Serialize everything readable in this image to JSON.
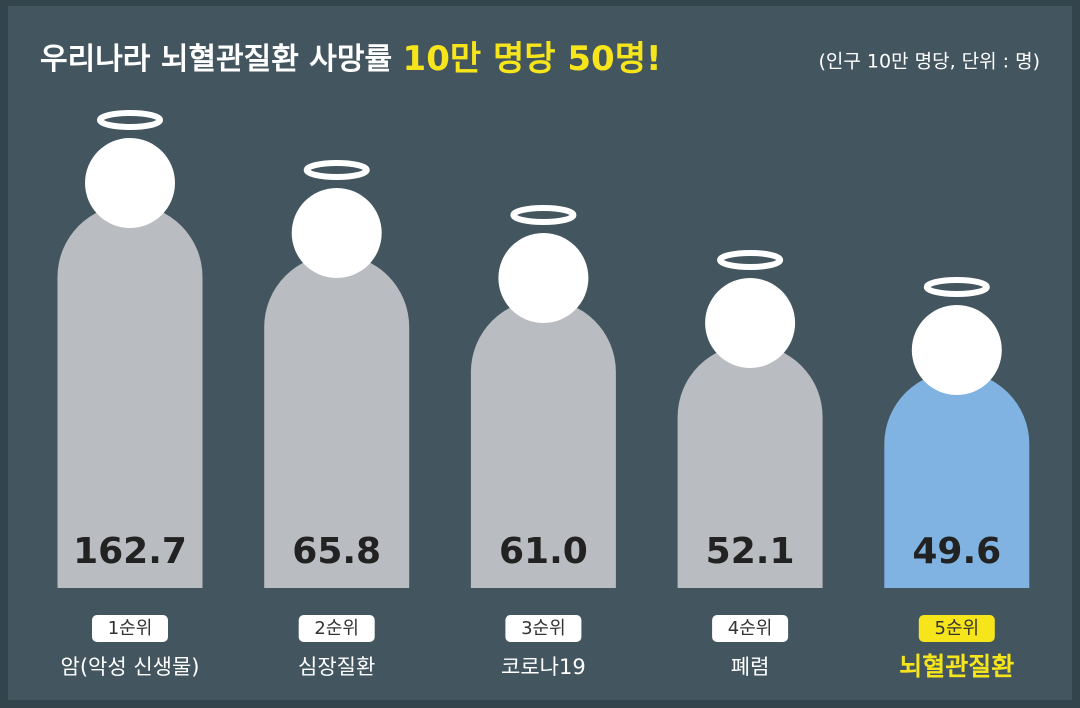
{
  "chart_data": {
    "type": "bar",
    "title": "우리나라 뇌혈관질환 사망률",
    "title_highlight": "10만 명당 50명!",
    "subtitle": "(인구 10만 명당, 단위 : 명)",
    "ranks": [
      "1순위",
      "2순위",
      "3순위",
      "4순위",
      "5순위"
    ],
    "categories": [
      "암(악성 신생물)",
      "심장질환",
      "코로나19",
      "폐렴",
      "뇌혈관질환"
    ],
    "values": [
      162.7,
      65.8,
      61.0,
      52.1,
      49.6
    ],
    "value_labels": [
      "162.7",
      "65.8",
      "61.0",
      "52.1",
      "49.6"
    ],
    "colors": [
      "#b9bcc0",
      "#b9bcc0",
      "#b9bcc0",
      "#b9bcc0",
      "#80b3e2"
    ],
    "highlight_text_color": "#f7e51c"
  }
}
